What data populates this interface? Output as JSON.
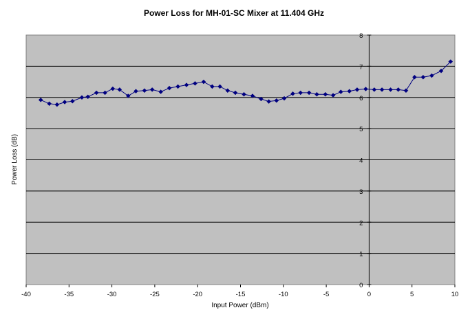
{
  "chart_data": {
    "type": "line",
    "title": "Power Loss for MH-01-SC Mixer at 11.404 GHz",
    "xlabel": "Input Power (dBm)",
    "ylabel": "Power Loss (dB)",
    "xlim": [
      -40,
      10
    ],
    "ylim": [
      0,
      8
    ],
    "x_ticks": [
      "-40",
      "-35",
      "-30",
      "-25",
      "-20",
      "-15",
      "-10",
      "-5",
      "0",
      "5",
      "10"
    ],
    "y_ticks": [
      "0",
      "1",
      "2",
      "3",
      "4",
      "5",
      "6",
      "7",
      "8"
    ],
    "grid": true,
    "legend": "none",
    "colors": {
      "plot_bg": "#c0c0c0",
      "series": "#000080",
      "gridline": "#000000"
    },
    "series": [
      {
        "x": [
          -38.3,
          -37.3,
          -36.4,
          -35.5,
          -34.6,
          -33.5,
          -32.8,
          -31.8,
          -30.8,
          -29.9,
          -29.1,
          -28.1,
          -27.2,
          -26.2,
          -25.3,
          -24.3,
          -23.3,
          -22.3,
          -21.3,
          -20.3,
          -19.3,
          -18.3,
          -17.4,
          -16.5,
          -15.6,
          -14.6,
          -13.6,
          -12.6,
          -11.7,
          -10.8,
          -9.9,
          -8.9,
          -8.0,
          -7.0,
          -6.1,
          -5.1,
          -4.2,
          -3.3,
          -2.3,
          -1.4,
          -0.4,
          0.6,
          1.5,
          2.5,
          3.4,
          4.3,
          5.3,
          6.3,
          7.3,
          8.4,
          9.5
        ],
        "y": [
          5.92,
          5.8,
          5.77,
          5.85,
          5.88,
          6.0,
          6.02,
          6.15,
          6.15,
          6.28,
          6.25,
          6.05,
          6.2,
          6.22,
          6.25,
          6.18,
          6.3,
          6.35,
          6.4,
          6.45,
          6.5,
          6.35,
          6.35,
          6.22,
          6.15,
          6.1,
          6.05,
          5.95,
          5.87,
          5.9,
          5.97,
          6.12,
          6.15,
          6.15,
          6.1,
          6.1,
          6.07,
          6.18,
          6.2,
          6.25,
          6.27,
          6.25,
          6.25,
          6.25,
          6.25,
          6.22,
          6.65,
          6.65,
          6.7,
          6.85,
          7.15
        ]
      }
    ]
  }
}
